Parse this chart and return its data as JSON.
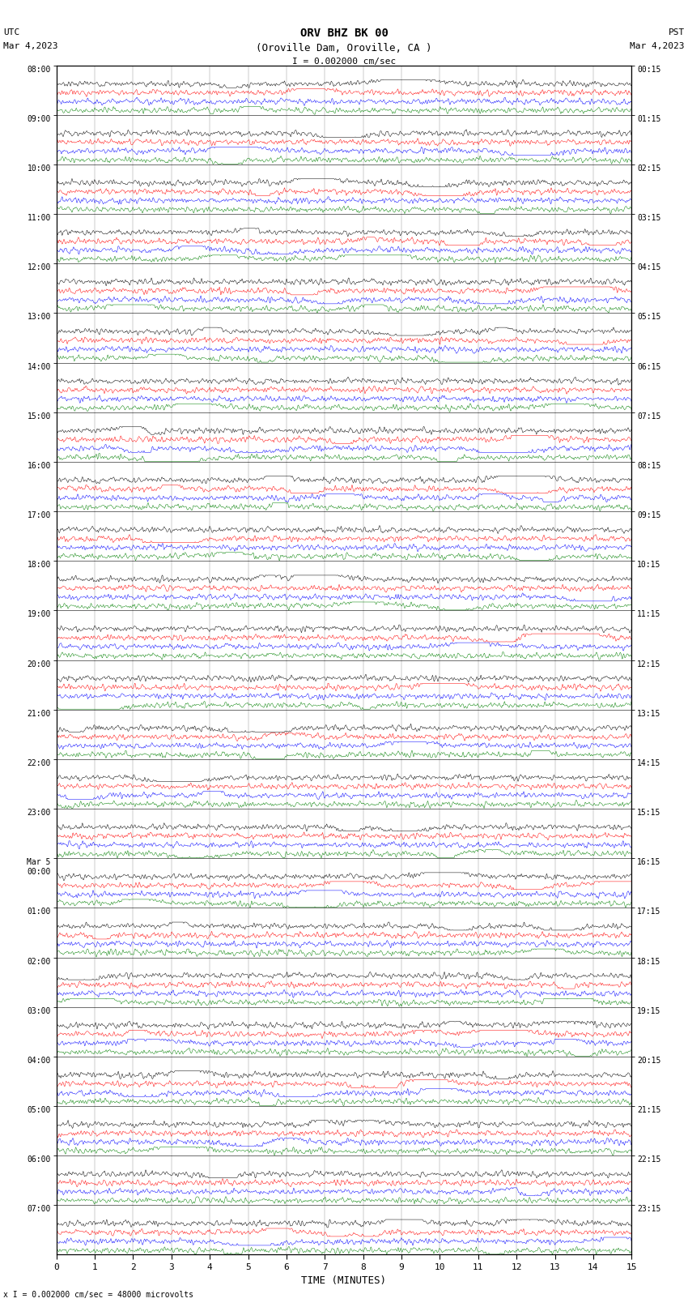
{
  "title_line1": "ORV BHZ BK 00",
  "title_line2": "(Oroville Dam, Oroville, CA )",
  "scale_text": "I = 0.002000 cm/sec",
  "bottom_note": "x I = 0.002000 cm/sec = 48000 microvolts",
  "xlabel": "TIME (MINUTES)",
  "left_times": [
    "08:00",
    "09:00",
    "10:00",
    "11:00",
    "12:00",
    "13:00",
    "14:00",
    "15:00",
    "16:00",
    "17:00",
    "18:00",
    "19:00",
    "20:00",
    "21:00",
    "22:00",
    "23:00",
    "Mar 5\n00:00",
    "01:00",
    "02:00",
    "03:00",
    "04:00",
    "05:00",
    "06:00",
    "07:00"
  ],
  "right_times": [
    "00:15",
    "01:15",
    "02:15",
    "03:15",
    "04:15",
    "05:15",
    "06:15",
    "07:15",
    "08:15",
    "09:15",
    "10:15",
    "11:15",
    "12:15",
    "13:15",
    "14:15",
    "15:15",
    "16:15",
    "17:15",
    "18:15",
    "19:15",
    "20:15",
    "21:15",
    "22:15",
    "23:15"
  ],
  "n_groups": 24,
  "colors": [
    "black",
    "red",
    "blue",
    "green"
  ],
  "minutes": 15,
  "background": "white",
  "grid_color": "#999999",
  "noise_amp": 0.06,
  "lw": 0.35
}
